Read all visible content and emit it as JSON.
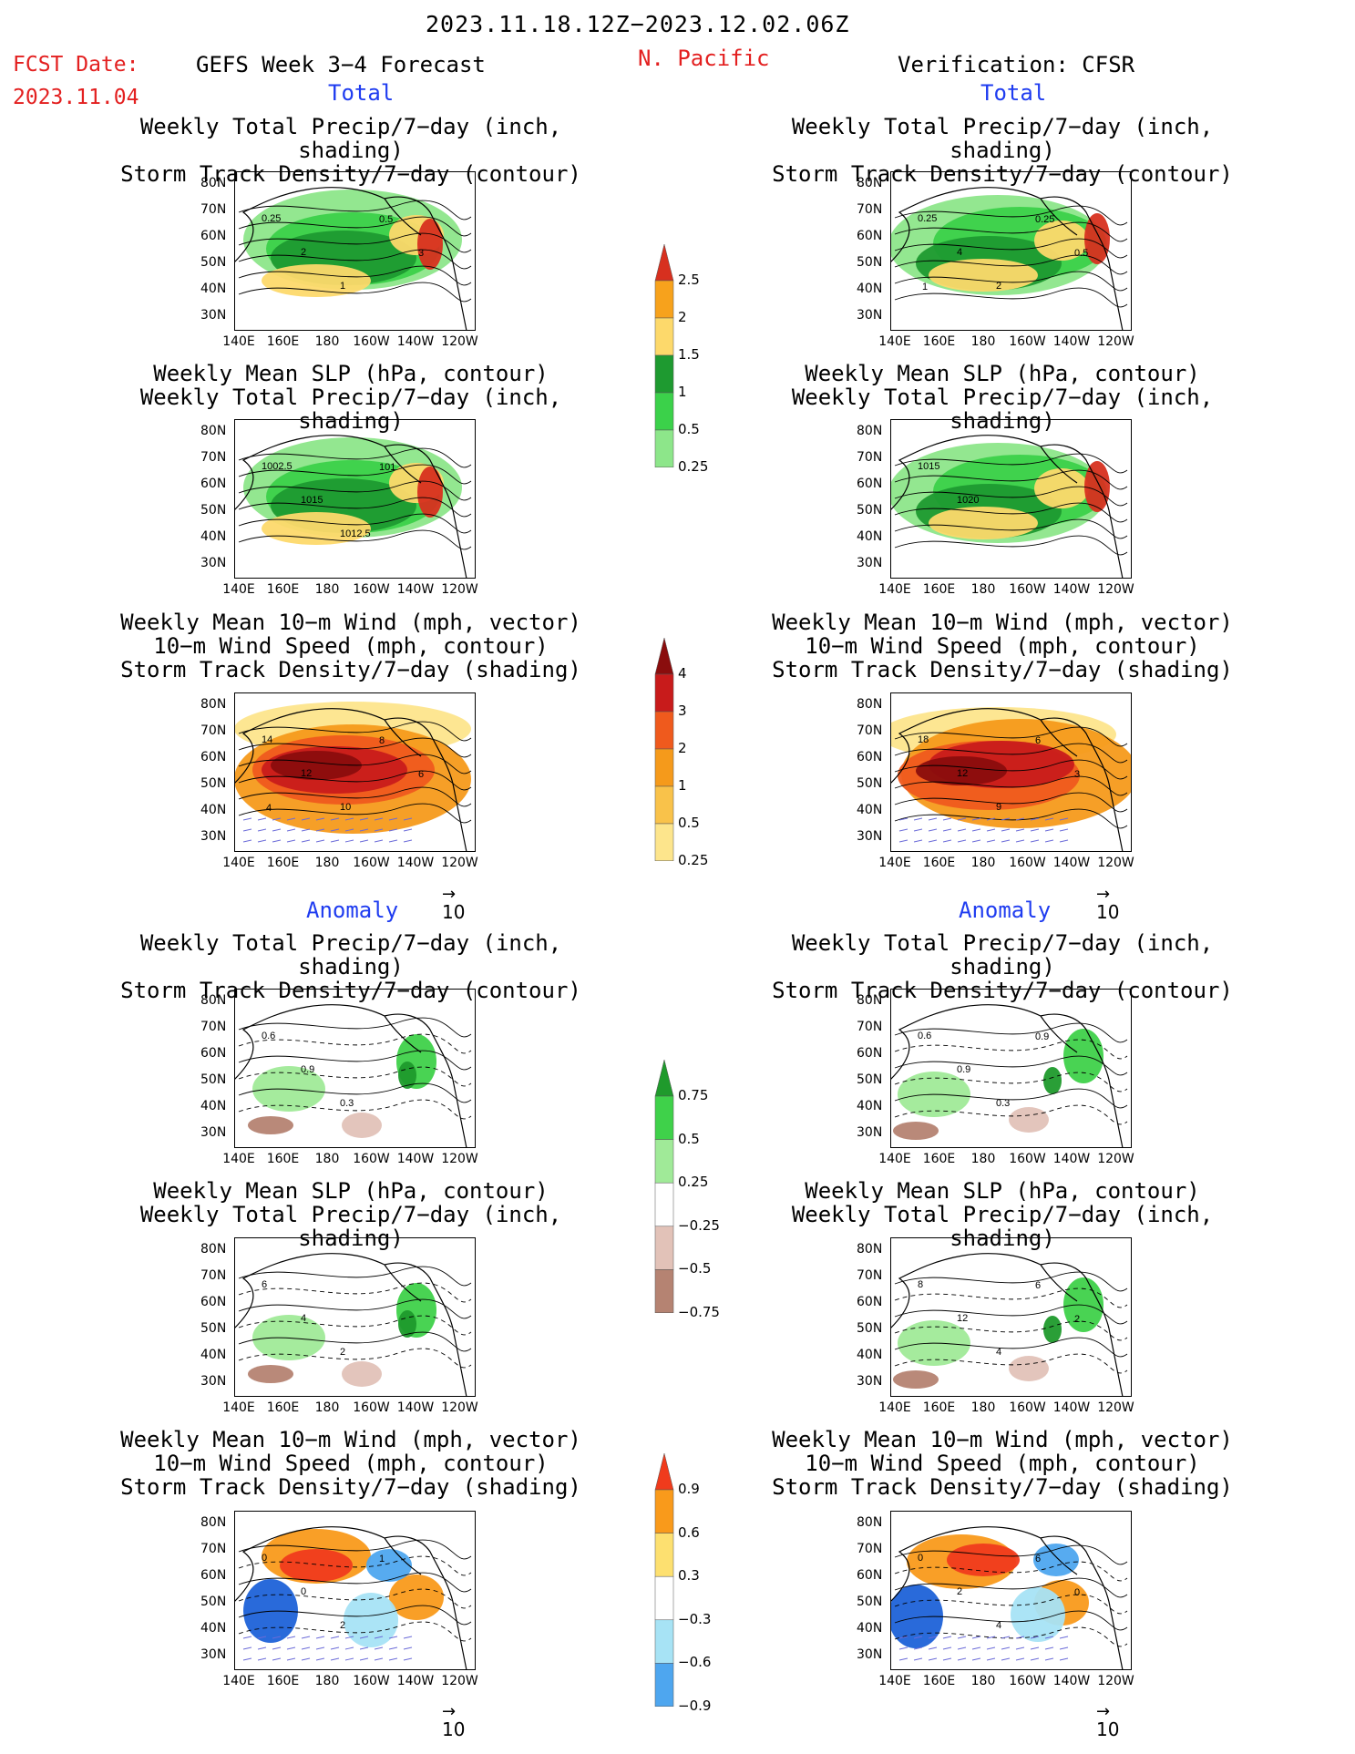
{
  "header": {
    "date_range": "2023.11.18.12Z−2023.12.02.06Z",
    "fcst_label": "FCST Date:",
    "fcst_date": "2023.11.04",
    "model": "GEFS Week 3−4 Forecast",
    "region": "N. Pacific",
    "verification": "Verification: CFSR"
  },
  "sections": {
    "total_left": "Total",
    "total_right": "Total",
    "anomaly_left": "Anomaly",
    "anomaly_right": "Anomaly"
  },
  "titles": {
    "precip_storm": [
      "Weekly Total Precip/7−day (inch, shading)",
      "Storm Track Density/7−day (contour)"
    ],
    "slp_precip": [
      "Weekly Mean SLP (hPa, contour)",
      "Weekly Total Precip/7−day (inch, shading)"
    ],
    "wind_storm": [
      "Weekly Mean 10−m Wind (mph, vector)",
      "10−m Wind Speed (mph, contour)",
      "Storm Track Density/7−day (shading)"
    ]
  },
  "axes": {
    "lat_labels": [
      "80N",
      "70N",
      "60N",
      "50N",
      "40N",
      "30N"
    ],
    "lon_labels": [
      "140E",
      "160E",
      "180",
      "160W",
      "140W",
      "120W"
    ]
  },
  "vector_ref": "10",
  "colorbars": {
    "precip_total": {
      "labels": [
        "2.5",
        "2",
        "1.5",
        "1",
        "0.5",
        "0.25"
      ],
      "colors": [
        "#d7301f",
        "#f7a21c",
        "#fdd96b",
        "#1e9a30",
        "#3bd14a",
        "#8de68a",
        "#c2f2bd"
      ]
    },
    "storm_total": {
      "labels": [
        "4",
        "3",
        "2",
        "1",
        "0.5",
        "0.25"
      ],
      "colors": [
        "#8a0d0d",
        "#c81b1b",
        "#ef5a1d",
        "#f59a1b",
        "#f9c24a",
        "#fde58c",
        "#fff7c8"
      ]
    },
    "precip_anom": {
      "labels": [
        "0.75",
        "0.5",
        "0.25",
        "−0.25",
        "−0.5",
        "−0.75"
      ],
      "colors": [
        "#1f9a2c",
        "#3fd14a",
        "#a0ea98",
        "#ffffff",
        "#e2c2b8",
        "#b58372",
        "#6e4431"
      ]
    },
    "storm_anom": {
      "labels": [
        "0.9",
        "0.6",
        "0.3",
        "−0.3",
        "−0.6",
        "−0.9"
      ],
      "colors": [
        "#f03b1c",
        "#f99a1b",
        "#fde070",
        "#ffffff",
        "#a7e3f5",
        "#4ea6ef",
        "#1e62d8"
      ]
    }
  },
  "panels": [
    {
      "id": "fc-total-precip",
      "contour_labels": [
        "0.25",
        "2",
        "1",
        "0.5",
        "3"
      ]
    },
    {
      "id": "obs-total-precip",
      "contour_labels": [
        "0.25",
        "4",
        "2",
        "0.25",
        "0.5",
        "1"
      ]
    },
    {
      "id": "fc-total-slp",
      "contour_labels": [
        "1002.5",
        "1015",
        "1012.5",
        "101"
      ]
    },
    {
      "id": "obs-total-slp",
      "contour_labels": [
        "1015",
        "1020"
      ]
    },
    {
      "id": "fc-total-wind",
      "contour_labels": [
        "14",
        "12",
        "10",
        "8",
        "6",
        "4"
      ]
    },
    {
      "id": "obs-total-wind",
      "contour_labels": [
        "18",
        "12",
        "9",
        "6",
        "3"
      ]
    },
    {
      "id": "fc-anom-precip",
      "contour_labels": [
        "0.6",
        "0.9",
        "0.3"
      ]
    },
    {
      "id": "obs-anom-precip",
      "contour_labels": [
        "0.6",
        "0.9",
        "0.3",
        "0.9"
      ]
    },
    {
      "id": "fc-anom-slp",
      "contour_labels": [
        "6",
        "4",
        "2"
      ]
    },
    {
      "id": "obs-anom-slp",
      "contour_labels": [
        "8",
        "12",
        "4",
        "6",
        "2"
      ]
    },
    {
      "id": "fc-anom-wind",
      "contour_labels": [
        "0",
        "0",
        "2",
        "1"
      ]
    },
    {
      "id": "obs-anom-wind",
      "contour_labels": [
        "0",
        "2",
        "4",
        "6",
        "0"
      ]
    }
  ]
}
